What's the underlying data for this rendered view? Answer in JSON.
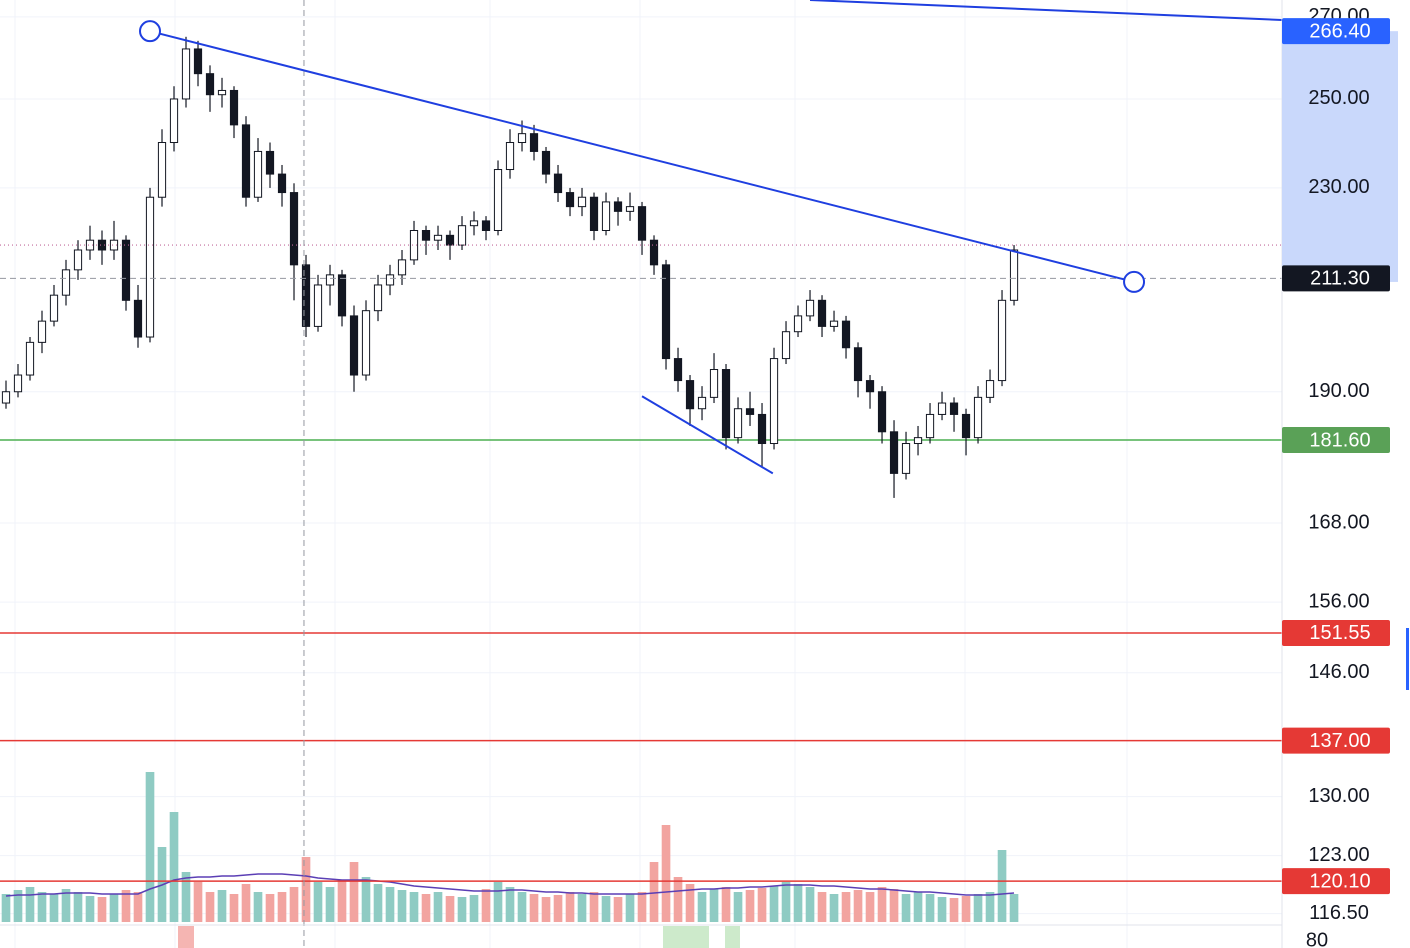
{
  "chart_data": {
    "type": "candlestick",
    "log_scale": true,
    "grid": true,
    "xlim": [
      -0.5,
      106.33
    ],
    "ylim": [
      112.8,
      274.3
    ],
    "yticks": [
      {
        "value": 270,
        "label": "270.00"
      },
      {
        "value": 250,
        "label": "250.00"
      },
      {
        "value": 230,
        "label": "230.00"
      },
      {
        "value": 190,
        "label": "190.00"
      },
      {
        "value": 168,
        "label": "168.00"
      },
      {
        "value": 156,
        "label": "156.00"
      },
      {
        "value": 146,
        "label": "146.00"
      },
      {
        "value": 130,
        "label": "130.00"
      },
      {
        "value": 123,
        "label": "123.00"
      },
      {
        "value": 116.5,
        "label": "116.50"
      }
    ],
    "lower_pane_ticks": [
      80
    ],
    "up_color": "#ffffff",
    "down_color": "#131722",
    "ohlc": [
      [
        188,
        192,
        187,
        190
      ],
      [
        190,
        195,
        189,
        193
      ],
      [
        193,
        200,
        192,
        199
      ],
      [
        199,
        205,
        197,
        203
      ],
      [
        203,
        210,
        202,
        208
      ],
      [
        208,
        215,
        206,
        213
      ],
      [
        213,
        219,
        211,
        217
      ],
      [
        217,
        222,
        215,
        219
      ],
      [
        219,
        221,
        214,
        217
      ],
      [
        217,
        223,
        215,
        219
      ],
      [
        219,
        220,
        205,
        207
      ],
      [
        207,
        210,
        198,
        200
      ],
      [
        200,
        230,
        199,
        228
      ],
      [
        228,
        243,
        226,
        240
      ],
      [
        240,
        253,
        238,
        250
      ],
      [
        250,
        265,
        248,
        262
      ],
      [
        262,
        264,
        253,
        256
      ],
      [
        256,
        258,
        247,
        251
      ],
      [
        251,
        255,
        248,
        252
      ],
      [
        252,
        253,
        241,
        244
      ],
      [
        244,
        246,
        226,
        228
      ],
      [
        228,
        241,
        227,
        238
      ],
      [
        238,
        240,
        230,
        233
      ],
      [
        233,
        235,
        226,
        229
      ],
      [
        229,
        231,
        207,
        214
      ],
      [
        214,
        216,
        200,
        202
      ],
      [
        202,
        212,
        201,
        210
      ],
      [
        210,
        214,
        206,
        212
      ],
      [
        212,
        213,
        202,
        204
      ],
      [
        204,
        206,
        190,
        193
      ],
      [
        193,
        207,
        192,
        205
      ],
      [
        205,
        212,
        203,
        210
      ],
      [
        210,
        214,
        208,
        212
      ],
      [
        212,
        217,
        210,
        215
      ],
      [
        215,
        223,
        214,
        221
      ],
      [
        221,
        222,
        216,
        219
      ],
      [
        219,
        222,
        217,
        220
      ],
      [
        220,
        221,
        215,
        218
      ],
      [
        218,
        224,
        217,
        222
      ],
      [
        222,
        225,
        220,
        223
      ],
      [
        223,
        224,
        219,
        221
      ],
      [
        221,
        236,
        220,
        234
      ],
      [
        234,
        243,
        232,
        240
      ],
      [
        240,
        245,
        238,
        242
      ],
      [
        242,
        244,
        236,
        238
      ],
      [
        238,
        239,
        231,
        233
      ],
      [
        233,
        235,
        227,
        229
      ],
      [
        229,
        230,
        224,
        226
      ],
      [
        226,
        230,
        224,
        228
      ],
      [
        228,
        229,
        219,
        221
      ],
      [
        221,
        229,
        220,
        227
      ],
      [
        227,
        228,
        222,
        225
      ],
      [
        225,
        229,
        223,
        226
      ],
      [
        226,
        227,
        216,
        219
      ],
      [
        219,
        220,
        212,
        214
      ],
      [
        214,
        215,
        194,
        196
      ],
      [
        196,
        198,
        190,
        192
      ],
      [
        192,
        193,
        184,
        187
      ],
      [
        187,
        191,
        185,
        189
      ],
      [
        189,
        197,
        188,
        194
      ],
      [
        194,
        195,
        180,
        182
      ],
      [
        182,
        189,
        181,
        187
      ],
      [
        187,
        190,
        184,
        186
      ],
      [
        186,
        188,
        177,
        181
      ],
      [
        181,
        198,
        180,
        196
      ],
      [
        196,
        203,
        195,
        201
      ],
      [
        201,
        206,
        200,
        204
      ],
      [
        204,
        209,
        203,
        207
      ],
      [
        207,
        208,
        200,
        202
      ],
      [
        202,
        205,
        201,
        203
      ],
      [
        203,
        204,
        196,
        198
      ],
      [
        198,
        199,
        189,
        192
      ],
      [
        192,
        193,
        187,
        190
      ],
      [
        190,
        191,
        181,
        183
      ],
      [
        183,
        185,
        172,
        176
      ],
      [
        176,
        183,
        175,
        181
      ],
      [
        181,
        184,
        179,
        182
      ],
      [
        182,
        188,
        181,
        186
      ],
      [
        186,
        190,
        185,
        188
      ],
      [
        188,
        189,
        183,
        186
      ],
      [
        186,
        187,
        179,
        182
      ],
      [
        182,
        191,
        181,
        189
      ],
      [
        189,
        194,
        188,
        192
      ],
      [
        192,
        209,
        191,
        207
      ],
      [
        207,
        218,
        206,
        217
      ]
    ],
    "volume_ylim": [
      0,
      200
    ],
    "volume_up_color": "#8fcbc3",
    "volume_down_color": "#f2a4a0",
    "volume": [
      28,
      32,
      35,
      30,
      28,
      33,
      30,
      26,
      25,
      28,
      32,
      30,
      150,
      75,
      110,
      50,
      40,
      30,
      32,
      28,
      38,
      30,
      28,
      30,
      35,
      65,
      40,
      35,
      42,
      60,
      45,
      38,
      35,
      32,
      30,
      28,
      30,
      26,
      25,
      27,
      33,
      40,
      35,
      30,
      28,
      25,
      27,
      30,
      28,
      30,
      26,
      25,
      28,
      30,
      60,
      97,
      45,
      38,
      30,
      33,
      35,
      30,
      32,
      34,
      36,
      40,
      38,
      35,
      30,
      28,
      30,
      32,
      30,
      35,
      33,
      28,
      30,
      28,
      25,
      24,
      26,
      28,
      30,
      72,
      28
    ],
    "volume_ma_color": "#5b3fb5",
    "volume_ma": [
      26,
      27,
      27,
      28,
      28,
      29,
      29,
      29,
      28,
      28,
      28,
      28,
      33,
      37,
      42,
      44,
      45,
      45,
      46,
      46,
      47,
      48,
      48,
      48,
      47,
      46,
      44,
      43,
      42,
      42,
      42,
      41,
      40,
      38,
      36,
      35,
      34,
      33,
      32,
      31,
      31,
      31,
      32,
      32,
      31,
      30,
      30,
      29,
      29,
      28,
      28,
      28,
      28,
      28,
      29,
      30,
      31,
      32,
      33,
      33,
      34,
      34,
      35,
      35,
      36,
      37,
      37,
      37,
      36,
      36,
      35,
      34,
      33,
      33,
      32,
      31,
      30,
      30,
      29,
      28,
      27,
      27,
      27,
      28,
      29
    ],
    "levels": [
      {
        "value": 181.6,
        "label": "181.60",
        "color": "#4caf50"
      },
      {
        "value": 151.55,
        "label": "151.55",
        "color": "#e53935"
      },
      {
        "value": 137,
        "label": "137.00",
        "color": "#e53935"
      },
      {
        "value": 120.1,
        "label": "120.10",
        "color": "#e53935"
      }
    ],
    "trendlines": [
      {
        "points": [
          [
            12,
            266.4
          ],
          [
            94,
            210.6
          ]
        ],
        "color": "#1f3fe0",
        "anchors": true,
        "label": "266.40"
      },
      {
        "points": [
          [
            67,
            274.3
          ],
          [
            106.33,
            269.2
          ]
        ],
        "color": "#1f3fe0",
        "anchors": false
      },
      {
        "points": [
          [
            53,
            189.2
          ],
          [
            63.9,
            176.0
          ]
        ],
        "color": "#1f3fe0",
        "anchors": false
      }
    ],
    "crosshair": {
      "x": 24.83,
      "price": {
        "value": 211.3,
        "label": "211.30"
      }
    }
  }
}
